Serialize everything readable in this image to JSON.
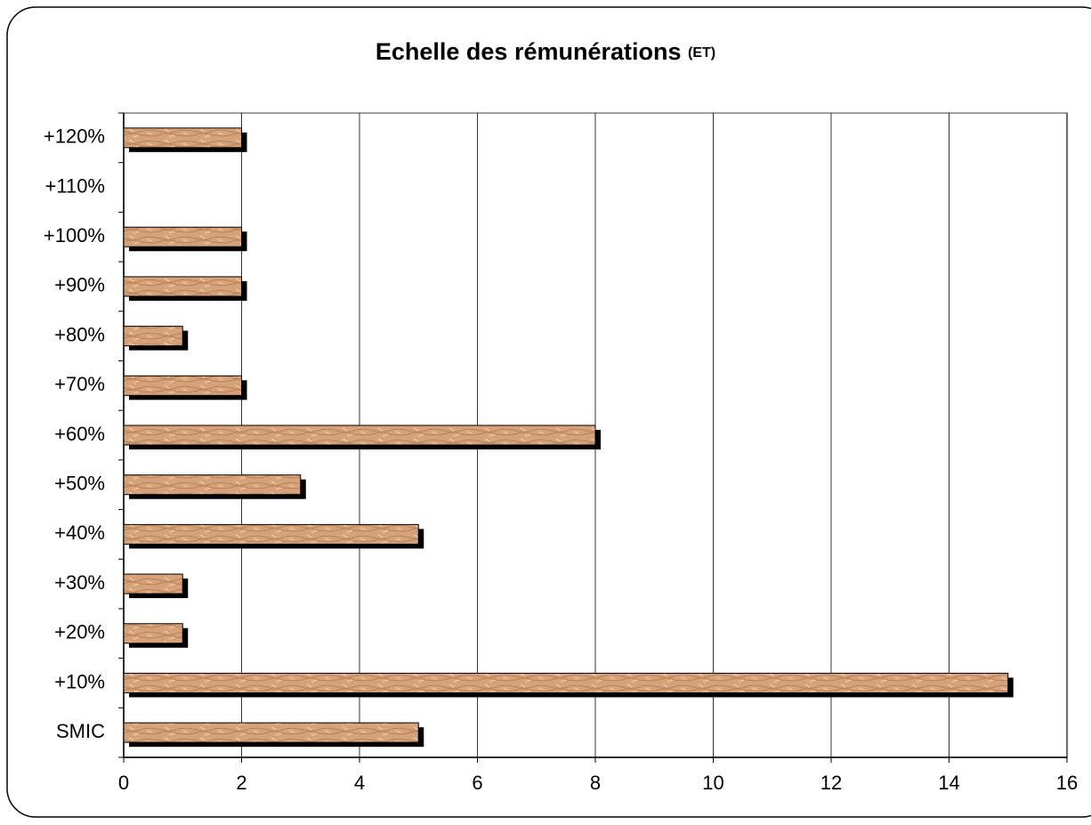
{
  "chart_data": {
    "type": "bar",
    "orientation": "horizontal",
    "title": "Echelle des rémunérations",
    "subtitle": "(ET)",
    "categories": [
      "SMIC",
      "+10%",
      "+20%",
      "+30%",
      "+40%",
      "+50%",
      "+60%",
      "+70%",
      "+80%",
      "+90%",
      "+100%",
      "+110%",
      "+120%"
    ],
    "values": [
      5,
      15,
      1,
      1,
      5,
      3,
      8,
      2,
      1,
      2,
      2,
      0,
      2
    ],
    "color": "#d6a27a",
    "xlim": [
      0,
      16
    ],
    "xticks": [
      0,
      2,
      4,
      6,
      8,
      10,
      12,
      14,
      16
    ],
    "grid": true
  }
}
